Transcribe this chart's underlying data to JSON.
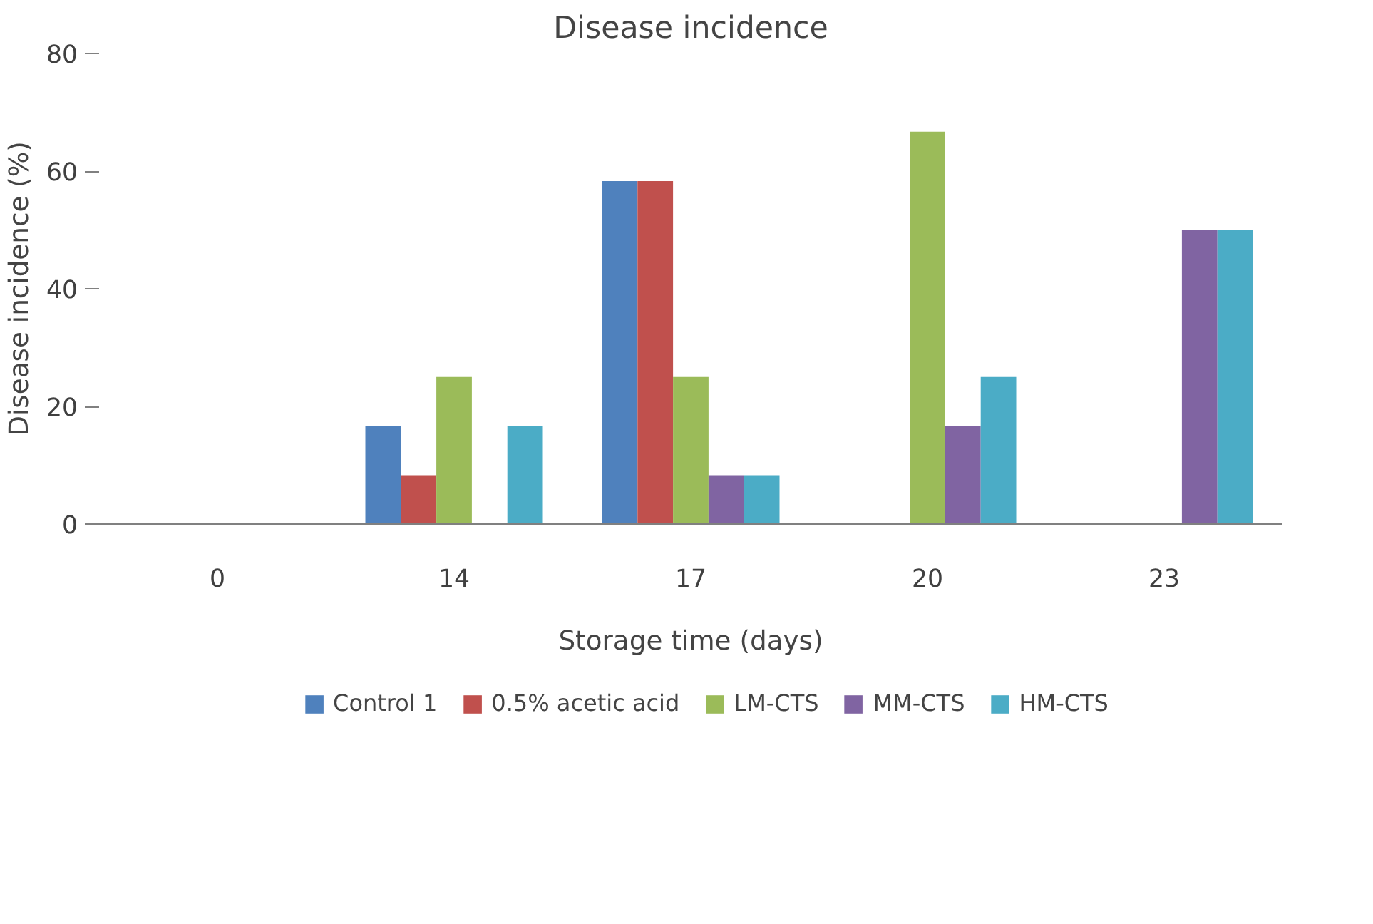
{
  "chart_data": {
    "type": "bar",
    "title": "Disease incidence",
    "xlabel": "Storage time (days)",
    "ylabel": "Disease incidence (%)",
    "categories": [
      "0",
      "14",
      "17",
      "20",
      "23"
    ],
    "series": [
      {
        "name": "Control 1",
        "color": "#4f81bd",
        "values": [
          0,
          16.7,
          58.3,
          0,
          0
        ]
      },
      {
        "name": "0.5% acetic acid",
        "color": "#c0504d",
        "values": [
          0,
          8.3,
          58.3,
          0,
          0
        ]
      },
      {
        "name": "LM-CTS",
        "color": "#9bbb59",
        "values": [
          0,
          25,
          25,
          66.7,
          0
        ]
      },
      {
        "name": "MM-CTS",
        "color": "#8064a2",
        "values": [
          0,
          0,
          8.3,
          16.7,
          50
        ]
      },
      {
        "name": "HM-CTS",
        "color": "#4bacc6",
        "values": [
          0,
          16.7,
          8.3,
          25,
          50
        ]
      }
    ],
    "ylim": [
      0,
      80
    ],
    "yticks": [
      0,
      20,
      40,
      60,
      80
    ],
    "grid": false,
    "legend": "bottom"
  }
}
